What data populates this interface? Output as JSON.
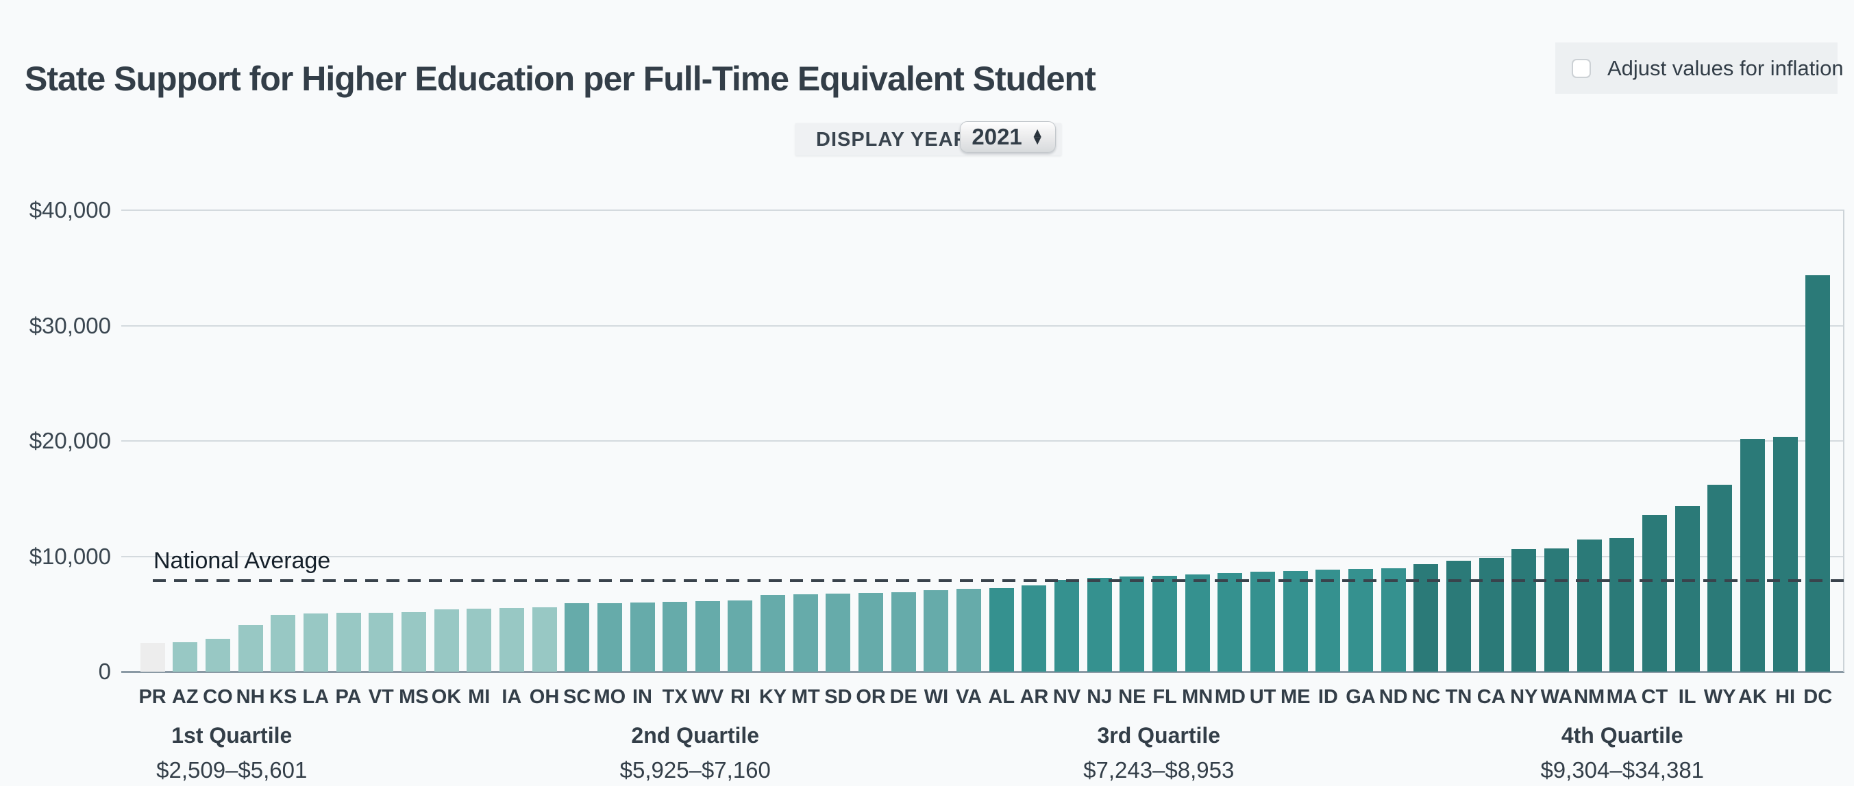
{
  "title": "State Support for Higher Education per Full-Time Equivalent Student",
  "inflation_toggle": {
    "label": "Adjust values for inflation",
    "checked": false
  },
  "year_control": {
    "label": "DISPLAY YEAR",
    "value": "2021"
  },
  "chart_data": {
    "type": "bar",
    "title": "State Support for Higher Education per Full-Time Equivalent Student",
    "xlabel": "",
    "ylabel": "",
    "ylim": [
      0,
      40000
    ],
    "grid": true,
    "yticks": [
      {
        "value": 40000,
        "label": "$40,000"
      },
      {
        "value": 30000,
        "label": "$30,000"
      },
      {
        "value": 20000,
        "label": "$20,000"
      },
      {
        "value": 10000,
        "label": "$10,000"
      },
      {
        "value": 0,
        "label": "0"
      }
    ],
    "national_average": {
      "label": "National Average",
      "value": 7900
    },
    "quartile_colors": [
      "#98c8c4",
      "#66abaa",
      "#35918f",
      "#2b7a78"
    ],
    "special_colors": {
      "PR": "#ededed"
    },
    "categories": [
      "PR",
      "AZ",
      "CO",
      "NH",
      "KS",
      "LA",
      "PA",
      "VT",
      "MS",
      "OK",
      "MI",
      "IA",
      "OH",
      "SC",
      "MO",
      "IN",
      "TX",
      "WV",
      "RI",
      "KY",
      "MT",
      "SD",
      "OR",
      "DE",
      "WI",
      "VA",
      "AL",
      "AR",
      "NV",
      "NJ",
      "NE",
      "FL",
      "MN",
      "MD",
      "UT",
      "ME",
      "ID",
      "GA",
      "ND",
      "NC",
      "TN",
      "CA",
      "NY",
      "WA",
      "NM",
      "MA",
      "CT",
      "IL",
      "WY",
      "AK",
      "HI",
      "DC"
    ],
    "states": [
      {
        "code": "PR",
        "value": 2509,
        "quartile": 1
      },
      {
        "code": "AZ",
        "value": 2560,
        "quartile": 1
      },
      {
        "code": "CO",
        "value": 2820,
        "quartile": 1
      },
      {
        "code": "NH",
        "value": 4040,
        "quartile": 1
      },
      {
        "code": "KS",
        "value": 4930,
        "quartile": 1
      },
      {
        "code": "LA",
        "value": 5040,
        "quartile": 1
      },
      {
        "code": "PA",
        "value": 5080,
        "quartile": 1
      },
      {
        "code": "VT",
        "value": 5090,
        "quartile": 1
      },
      {
        "code": "MS",
        "value": 5140,
        "quartile": 1
      },
      {
        "code": "OK",
        "value": 5400,
        "quartile": 1
      },
      {
        "code": "MI",
        "value": 5440,
        "quartile": 1
      },
      {
        "code": "IA",
        "value": 5540,
        "quartile": 1
      },
      {
        "code": "OH",
        "value": 5601,
        "quartile": 1
      },
      {
        "code": "SC",
        "value": 5925,
        "quartile": 2
      },
      {
        "code": "MO",
        "value": 5950,
        "quartile": 2
      },
      {
        "code": "IN",
        "value": 5990,
        "quartile": 2
      },
      {
        "code": "TX",
        "value": 6040,
        "quartile": 2
      },
      {
        "code": "WV",
        "value": 6090,
        "quartile": 2
      },
      {
        "code": "RI",
        "value": 6150,
        "quartile": 2
      },
      {
        "code": "KY",
        "value": 6660,
        "quartile": 2
      },
      {
        "code": "MT",
        "value": 6720,
        "quartile": 2
      },
      {
        "code": "SD",
        "value": 6760,
        "quartile": 2
      },
      {
        "code": "OR",
        "value": 6800,
        "quartile": 2
      },
      {
        "code": "DE",
        "value": 6860,
        "quartile": 2
      },
      {
        "code": "WI",
        "value": 7070,
        "quartile": 2
      },
      {
        "code": "VA",
        "value": 7160,
        "quartile": 2
      },
      {
        "code": "AL",
        "value": 7243,
        "quartile": 3
      },
      {
        "code": "AR",
        "value": 7500,
        "quartile": 3
      },
      {
        "code": "NV",
        "value": 7950,
        "quartile": 3
      },
      {
        "code": "NJ",
        "value": 8150,
        "quartile": 3
      },
      {
        "code": "NE",
        "value": 8250,
        "quartile": 3
      },
      {
        "code": "FL",
        "value": 8330,
        "quartile": 3
      },
      {
        "code": "MN",
        "value": 8450,
        "quartile": 3
      },
      {
        "code": "MD",
        "value": 8570,
        "quartile": 3
      },
      {
        "code": "UT",
        "value": 8680,
        "quartile": 3
      },
      {
        "code": "ME",
        "value": 8720,
        "quartile": 3
      },
      {
        "code": "ID",
        "value": 8850,
        "quartile": 3
      },
      {
        "code": "GA",
        "value": 8900,
        "quartile": 3
      },
      {
        "code": "ND",
        "value": 8953,
        "quartile": 3
      },
      {
        "code": "NC",
        "value": 9304,
        "quartile": 4
      },
      {
        "code": "TN",
        "value": 9620,
        "quartile": 4
      },
      {
        "code": "CA",
        "value": 9880,
        "quartile": 4
      },
      {
        "code": "NY",
        "value": 10610,
        "quartile": 4
      },
      {
        "code": "WA",
        "value": 10680,
        "quartile": 4
      },
      {
        "code": "NM",
        "value": 11450,
        "quartile": 4
      },
      {
        "code": "MA",
        "value": 11590,
        "quartile": 4
      },
      {
        "code": "CT",
        "value": 13590,
        "quartile": 4
      },
      {
        "code": "IL",
        "value": 14360,
        "quartile": 4
      },
      {
        "code": "WY",
        "value": 16200,
        "quartile": 4
      },
      {
        "code": "AK",
        "value": 20200,
        "quartile": 4
      },
      {
        "code": "HI",
        "value": 20340,
        "quartile": 4
      },
      {
        "code": "DC",
        "value": 34381,
        "quartile": 4
      }
    ],
    "quartiles": [
      {
        "label": "1st Quartile",
        "range": "$2,509–$5,601"
      },
      {
        "label": "2nd Quartile",
        "range": "$5,925–$7,160"
      },
      {
        "label": "3rd Quartile",
        "range": "$7,243–$8,953"
      },
      {
        "label": "4th Quartile",
        "range": "$9,304–$34,381"
      }
    ],
    "legend": "none"
  }
}
